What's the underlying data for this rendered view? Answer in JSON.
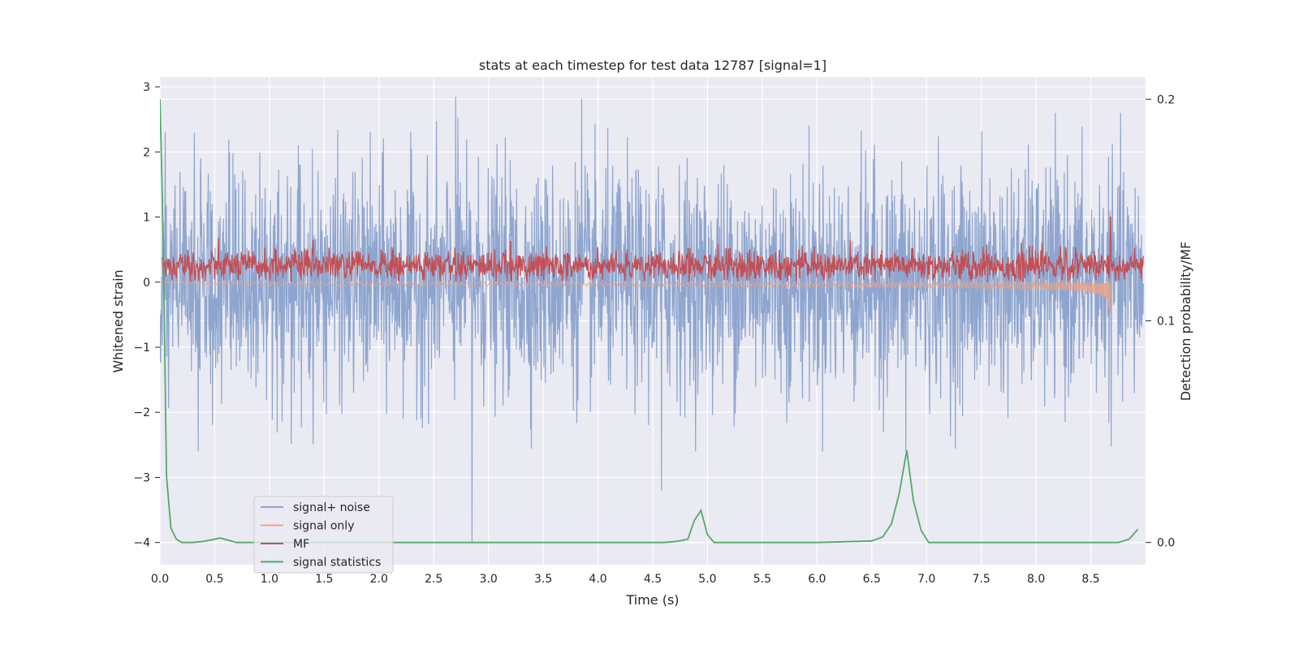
{
  "chart_data": {
    "type": "line",
    "title": "stats at each timestep for test data 12787 [signal=1]",
    "xlabel": "Time (s)",
    "ylabel": "Whitened strain",
    "y2label": "Detection probability/MF",
    "xlim": [
      0.0,
      9.0
    ],
    "ylim": [
      -4.34,
      3.15
    ],
    "y2lim": [
      -0.01,
      0.21
    ],
    "xticks": [
      "0.0",
      "0.5",
      "1.0",
      "1.5",
      "2.0",
      "2.5",
      "3.0",
      "3.5",
      "4.0",
      "4.5",
      "5.0",
      "5.5",
      "6.0",
      "6.5",
      "7.0",
      "7.5",
      "8.0",
      "8.5"
    ],
    "yticks": [
      "3",
      "2",
      "1",
      "0",
      "−1",
      "−2",
      "−3",
      "−4"
    ],
    "y2ticks": [
      "0.2",
      "0.1",
      "0.0"
    ],
    "grid": true,
    "legend_position": "lower-left",
    "colors": {
      "background": "#eaeaf2",
      "grid": "#ffffff",
      "noise": "#8ea5cf",
      "signal_only": "#e8a488",
      "mf": "#c44e52",
      "stats": "#55a868"
    },
    "series": [
      {
        "name": "signal+ noise",
        "axis": "left",
        "description_values": "dense noise, mostly within [-2.6, 2.6], spikes to 2.85 at 2.70 s and 2.82 at 3.85 s, −4.0 at 2.85 s, −3.2 at 4.58 s",
        "notable_points": [
          [
            2.7,
            2.85
          ],
          [
            3.85,
            2.82
          ],
          [
            2.85,
            -4.0
          ],
          [
            4.58,
            -3.2
          ],
          [
            6.81,
            -2.6
          ]
        ]
      },
      {
        "name": "signal only",
        "axis": "left",
        "description_values": "chirp with envelope growing from ~0 to ±0.55 near merger at 8.68 s",
        "merger_time": 8.68,
        "peak_amplitude": -0.55
      },
      {
        "name": "MF",
        "axis": "left",
        "description_values": "noisy trace between 0.0 and 0.7, peak 1.0 at 8.68 s",
        "notable_points": [
          [
            8.68,
            1.0
          ]
        ]
      },
      {
        "name": "signal statistics",
        "axis": "right",
        "x": [
          0.0,
          0.02,
          0.04,
          0.06,
          0.1,
          0.15,
          0.2,
          0.3,
          0.4,
          0.55,
          0.7,
          1.0,
          2.0,
          3.0,
          4.0,
          4.6,
          4.72,
          4.82,
          4.88,
          4.94,
          5.0,
          5.06,
          5.2,
          6.0,
          6.5,
          6.6,
          6.68,
          6.75,
          6.82,
          6.88,
          6.95,
          7.02,
          7.2,
          8.0,
          8.5,
          8.75,
          8.85,
          8.93
        ],
        "y": [
          0.2,
          0.16,
          0.1,
          0.03,
          0.0065,
          0.0015,
          0.0,
          0.0,
          0.0005,
          0.002,
          0.0,
          0.0,
          0.0,
          0.0,
          0.0,
          0.0,
          0.0005,
          0.0015,
          0.01,
          0.0145,
          0.0035,
          0.0,
          0.0,
          0.0,
          0.0007,
          0.0025,
          0.0085,
          0.022,
          0.0415,
          0.019,
          0.0055,
          0.0,
          0.0,
          0.0,
          0.0,
          0.0,
          0.0015,
          0.006
        ]
      }
    ]
  }
}
